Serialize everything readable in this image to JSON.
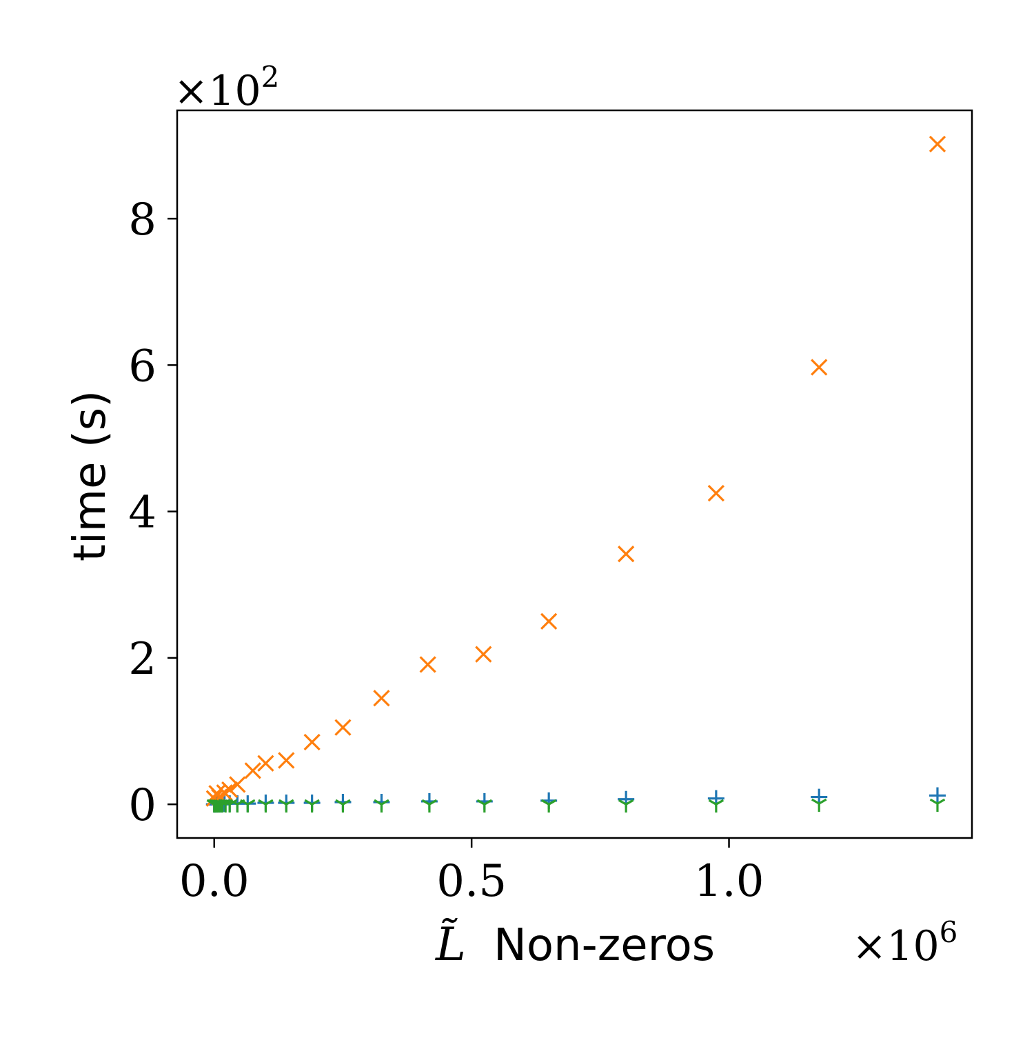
{
  "chart_data": {
    "type": "scatter",
    "xlabel": "Non-zeros",
    "xlabel_symbol": "L̃",
    "ylabel": "time (s)",
    "x_multiplier": "×10^6",
    "y_multiplier": "×10^2",
    "x_multiplier_base": "×10",
    "x_multiplier_exp": "6",
    "y_multiplier_base": "×10",
    "y_multiplier_exp": "2",
    "x_ticks": [
      {
        "value": 0.0,
        "label": "0.0"
      },
      {
        "value": 0.5,
        "label": "0.5"
      },
      {
        "value": 1.0,
        "label": "1.0"
      }
    ],
    "y_ticks": [
      {
        "value": 0,
        "label": "0"
      },
      {
        "value": 2,
        "label": "2"
      },
      {
        "value": 4,
        "label": "4"
      },
      {
        "value": 6,
        "label": "6"
      },
      {
        "value": 8,
        "label": "8"
      }
    ],
    "xlim": [
      -0.072,
      1.472
    ],
    "ylim": [
      -0.46,
      9.48
    ],
    "grid": false,
    "legend": "none",
    "series": [
      {
        "color": "#1f77b4",
        "marker": "plus",
        "x": [
          0.0,
          0.001,
          0.003,
          0.006,
          0.01,
          0.015,
          0.02,
          0.03,
          0.045,
          0.065,
          0.1,
          0.14,
          0.19,
          0.25,
          0.325,
          0.418,
          0.525,
          0.65,
          0.8,
          0.975,
          1.175,
          1.405
        ],
        "y": [
          0.0,
          0.0,
          0.0,
          0.0,
          0.0,
          0.0,
          0.01,
          0.01,
          0.01,
          0.01,
          0.02,
          0.02,
          0.02,
          0.03,
          0.03,
          0.04,
          0.04,
          0.05,
          0.07,
          0.08,
          0.1,
          0.12
        ]
      },
      {
        "color": "#ff7f0e",
        "marker": "x",
        "x": [
          0.0,
          0.005,
          0.01,
          0.02,
          0.03,
          0.045,
          0.075,
          0.1,
          0.14,
          0.19,
          0.25,
          0.325,
          0.415,
          0.523,
          0.65,
          0.8,
          0.975,
          1.175,
          1.405
        ],
        "y": [
          0.08,
          0.15,
          0.1,
          0.16,
          0.2,
          0.27,
          0.46,
          0.56,
          0.6,
          0.85,
          1.05,
          1.45,
          1.91,
          2.05,
          2.5,
          3.42,
          4.25,
          5.97,
          9.02
        ]
      },
      {
        "color": "#2ca02c",
        "marker": "tri_down",
        "x": [
          0.0,
          0.002,
          0.005,
          0.008,
          0.012,
          0.016,
          0.022,
          0.03,
          0.045,
          0.065,
          0.1,
          0.14,
          0.19,
          0.25,
          0.325,
          0.418,
          0.525,
          0.65,
          0.8,
          0.975,
          1.175,
          1.405
        ],
        "y": [
          0.0,
          0.0,
          0.0,
          0.0,
          0.0,
          0.0,
          0.0,
          0.0,
          0.0,
          0.0,
          0.0,
          0.0,
          0.0,
          0.0,
          0.0,
          0.0,
          0.0,
          0.0,
          0.0,
          0.0,
          0.01,
          0.01
        ]
      }
    ]
  }
}
